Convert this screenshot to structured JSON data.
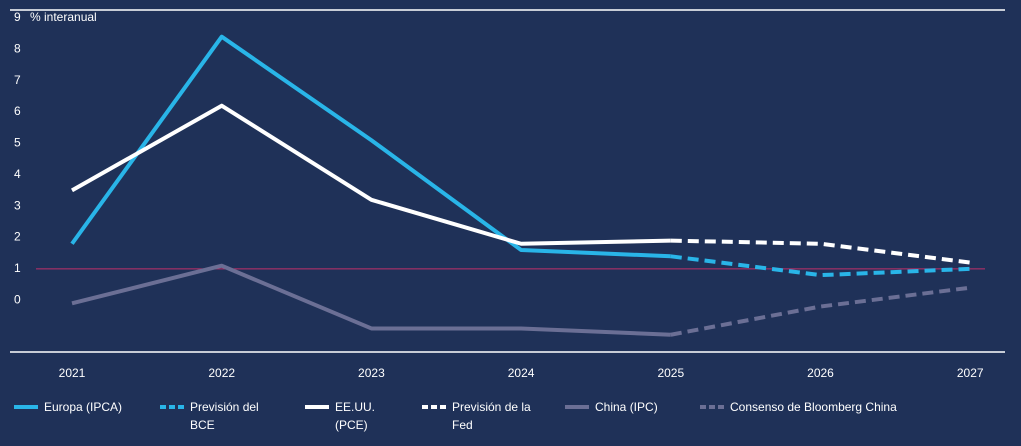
{
  "chart_data": {
    "type": "line",
    "y_label": "% interanual",
    "categories": [
      "2021",
      "2022",
      "2023",
      "2024",
      "2025",
      "2026",
      "2027"
    ],
    "ylim": [
      -1.65,
      9.25
    ],
    "yticks": [
      0,
      1,
      2,
      3,
      4,
      5,
      6,
      7,
      8,
      9
    ],
    "reference_line": {
      "value": 1,
      "color": "#c0306a"
    },
    "series": [
      {
        "name": "Europa (IPCA)",
        "color": "#29b5e8",
        "dash": false,
        "values": [
          1.8,
          8.4,
          5.1,
          1.6,
          1.4,
          null,
          null
        ]
      },
      {
        "name": "Previsión del BCE",
        "color": "#29b5e8",
        "dash": true,
        "values": [
          null,
          null,
          null,
          null,
          1.4,
          0.8,
          1.0
        ]
      },
      {
        "name": "EE.UU. (PCE)",
        "color": "#ffffff",
        "dash": false,
        "values": [
          3.5,
          6.2,
          3.2,
          1.8,
          1.9,
          null,
          null
        ]
      },
      {
        "name": "Previsión de la Fed",
        "color": "#ffffff",
        "dash": true,
        "values": [
          null,
          null,
          null,
          null,
          1.9,
          1.8,
          1.2
        ]
      },
      {
        "name": "China (IPC)",
        "color": "#6b6f95",
        "dash": false,
        "values": [
          -0.1,
          1.1,
          -0.9,
          -0.9,
          -1.1,
          null,
          null
        ]
      },
      {
        "name": "Consenso de Bloomberg China",
        "color": "#6b6f95",
        "dash": true,
        "values": [
          null,
          null,
          null,
          null,
          -1.1,
          -0.2,
          0.4
        ]
      }
    ]
  }
}
